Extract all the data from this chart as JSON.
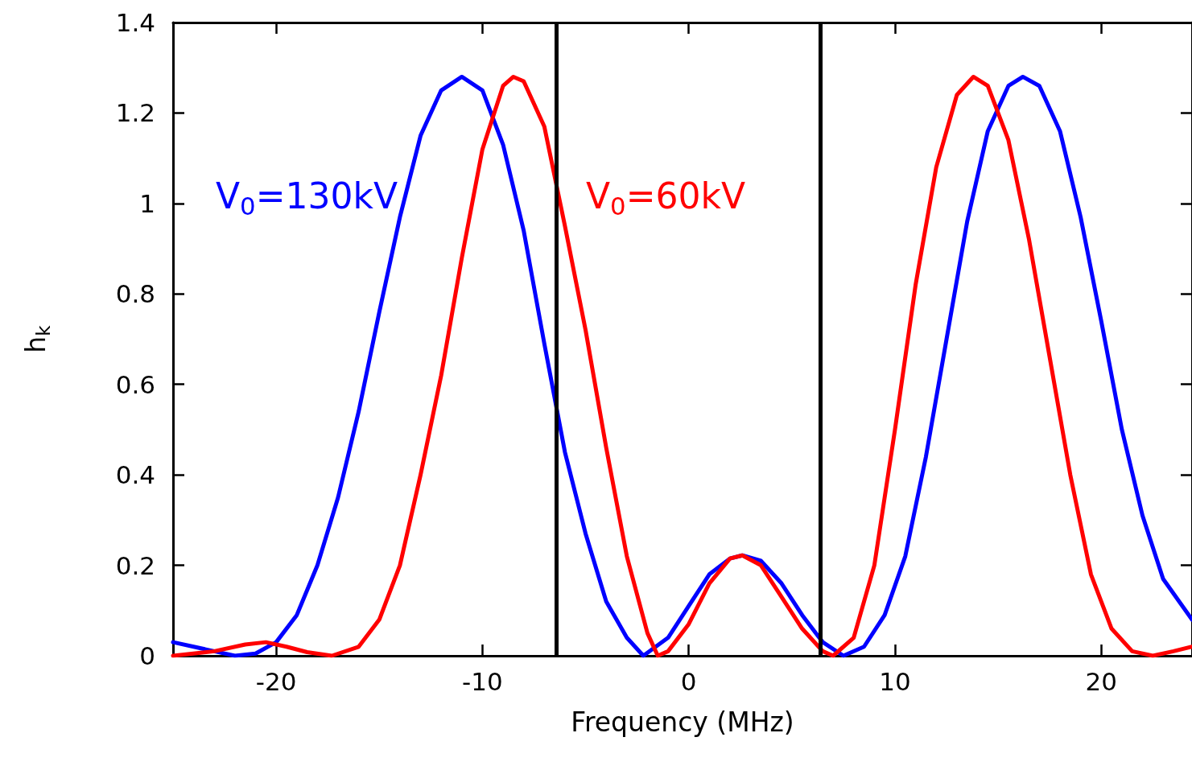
{
  "chart_data": {
    "type": "line",
    "xlabel": "Frequency (MHz)",
    "ylabel": "h$_{k}$",
    "xlim": [
      -25,
      24.4
    ],
    "ylim": [
      0,
      1.4
    ],
    "xticks": [
      -20,
      -10,
      0,
      10,
      20
    ],
    "yticks": [
      0,
      0.2,
      0.4,
      0.6,
      0.8,
      1,
      1.2,
      1.4
    ],
    "grid": false,
    "legend": false,
    "marker": "none",
    "line_style": "solid",
    "ref_lines": [
      {
        "axis": "x",
        "value": -6.4,
        "color": "#000000"
      },
      {
        "axis": "x",
        "value": 6.4,
        "color": "#000000"
      }
    ],
    "series": [
      {
        "name": "V$_{0}$=130kV",
        "color": "#0000ff",
        "x": [
          -25,
          -24,
          -23,
          -22,
          -21,
          -20,
          -19,
          -18,
          -17,
          -16,
          -15,
          -14,
          -13,
          -12,
          -11,
          -10,
          -9,
          -8,
          -7,
          -6,
          -5,
          -4,
          -3,
          -2.2,
          -1,
          0,
          1,
          2,
          2.6,
          3.5,
          4.5,
          5.5,
          6.5,
          7.5,
          8.5,
          9.5,
          10.5,
          11.5,
          12.5,
          13.5,
          14.5,
          15.5,
          16.2,
          17,
          18,
          19,
          20,
          21,
          22,
          23,
          24.4
        ],
        "values": [
          0.03,
          0.02,
          0.01,
          0,
          0.005,
          0.03,
          0.09,
          0.2,
          0.35,
          0.54,
          0.76,
          0.97,
          1.15,
          1.25,
          1.28,
          1.25,
          1.13,
          0.94,
          0.69,
          0.45,
          0.27,
          0.12,
          0.04,
          0,
          0.04,
          0.11,
          0.18,
          0.215,
          0.222,
          0.21,
          0.16,
          0.09,
          0.03,
          0,
          0.02,
          0.09,
          0.22,
          0.44,
          0.7,
          0.96,
          1.16,
          1.26,
          1.28,
          1.26,
          1.16,
          0.97,
          0.74,
          0.5,
          0.31,
          0.17,
          0.08
        ]
      },
      {
        "name": "V$_{0}$=60kV",
        "color": "#ff0000",
        "x": [
          -25,
          -23,
          -21.5,
          -20.5,
          -19.5,
          -18.5,
          -17.3,
          -16,
          -15,
          -14,
          -13,
          -12,
          -11,
          -10,
          -9,
          -8.5,
          -8,
          -7,
          -6,
          -5,
          -4,
          -3,
          -2,
          -1.5,
          -1,
          0,
          1,
          2,
          2.6,
          3.5,
          4.5,
          5.5,
          6.5,
          7,
          8,
          9,
          10,
          11,
          12,
          13,
          13.8,
          14.5,
          15.5,
          16.5,
          17.5,
          18.5,
          19.5,
          20.5,
          21.5,
          22.5,
          23.5,
          24.4
        ],
        "values": [
          0,
          0.01,
          0.025,
          0.03,
          0.02,
          0.008,
          0,
          0.02,
          0.08,
          0.2,
          0.4,
          0.62,
          0.88,
          1.12,
          1.26,
          1.28,
          1.27,
          1.17,
          0.95,
          0.72,
          0.46,
          0.22,
          0.05,
          0,
          0.01,
          0.07,
          0.16,
          0.215,
          0.222,
          0.2,
          0.13,
          0.06,
          0.01,
          0,
          0.04,
          0.2,
          0.5,
          0.82,
          1.08,
          1.24,
          1.28,
          1.26,
          1.14,
          0.92,
          0.66,
          0.4,
          0.18,
          0.06,
          0.01,
          0,
          0.01,
          0.02
        ]
      }
    ]
  }
}
